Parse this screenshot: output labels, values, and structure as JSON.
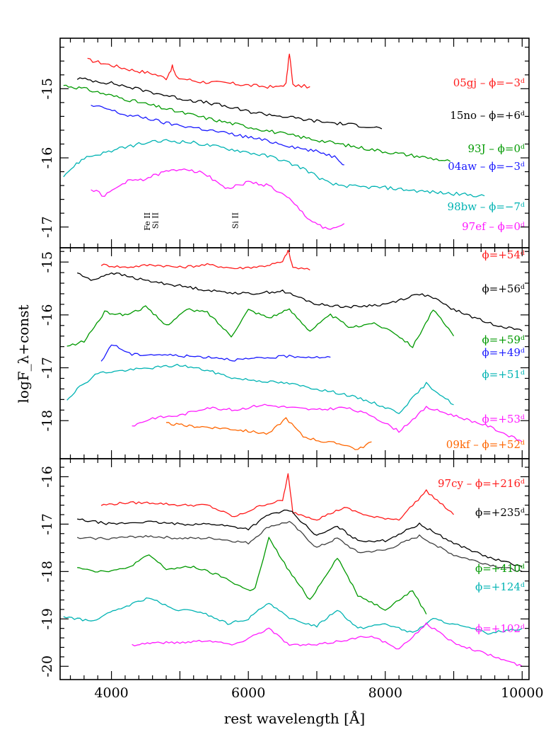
{
  "chart_data": {
    "type": "line",
    "xlabel": "rest wavelength [Å]",
    "ylabel": "logF_λ+const",
    "xlim": [
      3250,
      10100
    ],
    "x_ticks": [
      4000,
      6000,
      8000,
      10000
    ],
    "panels": [
      {
        "id": "top",
        "ylim": [
          -17.3,
          -14.27
        ],
        "y_ticks": [
          "-15",
          "-16",
          "-17"
        ],
        "y_tick_values": [
          -15,
          -16,
          -17
        ],
        "annotations": [
          {
            "text": "Fe II",
            "x": 4560
          },
          {
            "text": "Si II",
            "x": 4680
          },
          {
            "text": "Si II",
            "x": 5850
          }
        ],
        "series": [
          {
            "name": "05gj",
            "phase": "ϕ=−3ᵈ",
            "color": "#ff1a1a",
            "x": [
              3650,
              4000,
              4300,
              4600,
              4800,
              4890,
              4950,
              5300,
              5700,
              6000,
              6400,
              6550,
              6600,
              6650,
              6900
            ],
            "y": [
              -14.58,
              -14.66,
              -14.73,
              -14.78,
              -14.85,
              -14.68,
              -14.84,
              -14.9,
              -14.92,
              -14.95,
              -14.98,
              -14.93,
              -14.48,
              -14.95,
              -14.97
            ]
          },
          {
            "name": "15no",
            "phase": "ϕ=+6ᵈ",
            "color": "#000000",
            "x": [
              3500,
              4000,
              4500,
              5000,
              5500,
              6000,
              6500,
              7000,
              7300,
              7500,
              7800,
              7950
            ],
            "y": [
              -14.85,
              -14.92,
              -15.03,
              -15.14,
              -15.22,
              -15.33,
              -15.4,
              -15.47,
              -15.5,
              -15.52,
              -15.55,
              -15.58
            ]
          },
          {
            "name": "93J",
            "phase": "ϕ=0ᵈ",
            "color": "#009900",
            "x": [
              3300,
              3600,
              4000,
              4500,
              5000,
              5500,
              6000,
              6500,
              7000,
              7500,
              8000,
              8500,
              8950
            ],
            "y": [
              -14.95,
              -15.0,
              -15.1,
              -15.22,
              -15.34,
              -15.45,
              -15.55,
              -15.65,
              -15.74,
              -15.83,
              -15.91,
              -15.98,
              -16.05
            ]
          },
          {
            "name": "04aw",
            "phase": "ϕ=−3ᵈ",
            "color": "#1a1aff",
            "x": [
              3700,
              3900,
              4200,
              4500,
              4800,
              5200,
              5600,
              6000,
              6400,
              6800,
              7100,
              7300,
              7400
            ],
            "y": [
              -15.25,
              -15.28,
              -15.38,
              -15.42,
              -15.5,
              -15.56,
              -15.63,
              -15.7,
              -15.78,
              -15.87,
              -15.93,
              -16.0,
              -16.1
            ]
          },
          {
            "name": "98bw",
            "phase": "ϕ=−7ᵈ",
            "color": "#00b3b3",
            "x": [
              3300,
              3600,
              4000,
              4400,
              4800,
              5200,
              5600,
              6000,
              6400,
              6800,
              7200,
              7600,
              8000,
              8500,
              9000,
              9450
            ],
            "y": [
              -16.25,
              -16.0,
              -15.9,
              -15.8,
              -15.75,
              -15.78,
              -15.85,
              -15.92,
              -16.0,
              -16.15,
              -16.38,
              -16.42,
              -16.43,
              -16.48,
              -16.52,
              -16.55
            ]
          },
          {
            "name": "97ef",
            "phase": "ϕ=0ᵈ",
            "color": "#ff1aff",
            "x": [
              3700,
              3900,
              4200,
              4500,
              4800,
              5100,
              5400,
              5700,
              6000,
              6300,
              6600,
              6900,
              7200,
              7400
            ],
            "y": [
              -16.45,
              -16.55,
              -16.35,
              -16.3,
              -16.2,
              -16.15,
              -16.25,
              -16.45,
              -16.35,
              -16.4,
              -16.6,
              -16.9,
              -17.05,
              -16.95
            ]
          }
        ]
      },
      {
        "id": "middle",
        "ylim": [
          -18.72,
          -14.73
        ],
        "y_ticks": [
          "-15",
          "-16",
          "-17",
          "-18"
        ],
        "y_tick_values": [
          -15,
          -16,
          -17,
          -18
        ],
        "series": [
          {
            "name": "",
            "phase": "ϕ=+54ᵈ",
            "color": "#ff1a1a",
            "x": [
              3850,
              4200,
              4600,
              5000,
              5400,
              5800,
              6200,
              6500,
              6580,
              6650,
              6900
            ],
            "y": [
              -15.05,
              -15.1,
              -15.05,
              -15.1,
              -15.05,
              -15.12,
              -15.08,
              -15.0,
              -14.78,
              -15.1,
              -15.15
            ]
          },
          {
            "name": "",
            "phase": "ϕ=+56ᵈ",
            "color": "#000000",
            "x": [
              3500,
              3700,
              4000,
              4500,
              5000,
              5500,
              6000,
              6500,
              7000,
              7500,
              8000,
              8500,
              8700,
              9000,
              9500,
              10000
            ],
            "y": [
              -15.2,
              -15.35,
              -15.2,
              -15.35,
              -15.45,
              -15.55,
              -15.6,
              -15.55,
              -15.8,
              -15.85,
              -15.8,
              -15.6,
              -15.68,
              -15.9,
              -16.15,
              -16.3
            ]
          },
          {
            "name": "",
            "phase": "ϕ=+59ᵈ",
            "color": "#009900",
            "x": [
              3350,
              3600,
              3900,
              4200,
              4500,
              4800,
              5100,
              5400,
              5750,
              6000,
              6300,
              6600,
              6900,
              7200,
              7500,
              7800,
              8100,
              8400,
              8700,
              9000
            ],
            "y": [
              -16.6,
              -16.5,
              -15.95,
              -16.0,
              -15.85,
              -16.2,
              -15.9,
              -15.95,
              -16.4,
              -15.9,
              -16.05,
              -15.9,
              -16.3,
              -16.0,
              -16.25,
              -16.15,
              -16.3,
              -16.6,
              -15.9,
              -16.4
            ]
          },
          {
            "name": "",
            "phase": "ϕ=+49ᵈ",
            "color": "#1a1aff",
            "x": [
              3850,
              4000,
              4300,
              4700,
              5100,
              5500,
              5800,
              6200,
              6600,
              7000,
              7200
            ],
            "y": [
              -16.9,
              -16.55,
              -16.75,
              -16.75,
              -16.78,
              -16.8,
              -16.85,
              -16.82,
              -16.78,
              -16.8,
              -16.8
            ]
          },
          {
            "name": "",
            "phase": "ϕ=+51ᵈ",
            "color": "#00b3b3",
            "x": [
              3350,
              3500,
              3800,
              4200,
              4600,
              5000,
              5400,
              5800,
              6200,
              6600,
              7000,
              7400,
              7800,
              8200,
              8600,
              9000
            ],
            "y": [
              -17.6,
              -17.4,
              -17.1,
              -17.05,
              -17.0,
              -16.95,
              -17.05,
              -17.2,
              -17.25,
              -17.3,
              -17.4,
              -17.5,
              -17.65,
              -17.85,
              -17.3,
              -17.7
            ]
          },
          {
            "name": "",
            "phase": "ϕ=+53ᵈ",
            "color": "#ff1aff",
            "x": [
              4300,
              4600,
              5000,
              5400,
              5800,
              6200,
              6600,
              7000,
              7400,
              7800,
              8200,
              8600,
              9000,
              9500,
              10000
            ],
            "y": [
              -18.1,
              -17.95,
              -17.9,
              -17.75,
              -17.8,
              -17.7,
              -17.75,
              -17.8,
              -17.75,
              -17.9,
              -18.2,
              -17.75,
              -17.9,
              -18.1,
              -18.4
            ]
          },
          {
            "name": "09kf",
            "phase": "ϕ=+52ᵈ",
            "color": "#ff6600",
            "x": [
              4800,
              5100,
              5400,
              5700,
              6000,
              6300,
              6550,
              6800,
              7100,
              7400,
              7600,
              7800
            ],
            "y": [
              -18.05,
              -18.1,
              -18.12,
              -18.15,
              -18.2,
              -18.25,
              -17.95,
              -18.3,
              -18.4,
              -18.45,
              -18.55,
              -18.4
            ]
          }
        ]
      },
      {
        "id": "bottom",
        "ylim": [
          -20.28,
          -15.62
        ],
        "y_ticks": [
          "-16",
          "-17",
          "-18",
          "-19",
          "-20"
        ],
        "y_tick_values": [
          -16,
          -17,
          -18,
          -19,
          -20
        ],
        "series": [
          {
            "name": "97cy",
            "phase": "ϕ=+216ᵈ",
            "color": "#ff1a1a",
            "x": [
              3850,
              4200,
              4600,
              5000,
              5400,
              5800,
              6200,
              6500,
              6580,
              6650,
              7000,
              7400,
              7800,
              8200,
              8600,
              8800,
              9000
            ],
            "y": [
              -16.6,
              -16.55,
              -16.55,
              -16.6,
              -16.6,
              -16.85,
              -16.6,
              -16.5,
              -15.95,
              -16.75,
              -16.9,
              -16.65,
              -16.85,
              -16.9,
              -16.3,
              -16.55,
              -16.8
            ]
          },
          {
            "name": "",
            "phase": "ϕ=+235ᵈ",
            "color": "#000000",
            "x": [
              3500,
              4000,
              4500,
              5000,
              5500,
              6000,
              6300,
              6600,
              7000,
              7300,
              7600,
              8000,
              8500,
              9000,
              9500,
              10000
            ],
            "y": [
              -16.9,
              -17.0,
              -16.95,
              -17.0,
              -17.0,
              -17.1,
              -16.8,
              -16.7,
              -17.25,
              -17.05,
              -17.35,
              -17.35,
              -17.0,
              -17.4,
              -17.7,
              -17.9
            ]
          },
          {
            "name": "",
            "phase": "",
            "color": "#404040",
            "x": [
              3500,
              4000,
              4500,
              5000,
              5500,
              6000,
              6300,
              6600,
              7000,
              7300,
              7600,
              8000,
              8500,
              9000,
              9500,
              10000
            ],
            "y": [
              -17.3,
              -17.3,
              -17.25,
              -17.3,
              -17.3,
              -17.4,
              -17.05,
              -16.95,
              -17.5,
              -17.3,
              -17.6,
              -17.55,
              -17.25,
              -17.65,
              -17.85,
              -18.0
            ]
          },
          {
            "name": "",
            "phase": "ϕ=+410ᵈ",
            "color": "#009900",
            "x": [
              3500,
              3800,
              4200,
              4550,
              4800,
              5200,
              5600,
              6000,
              6100,
              6300,
              6600,
              6900,
              7300,
              7600,
              8000,
              8400,
              8600
            ],
            "y": [
              -17.9,
              -18.0,
              -17.95,
              -17.65,
              -17.95,
              -17.9,
              -18.1,
              -18.4,
              -18.35,
              -17.3,
              -18.0,
              -18.6,
              -17.7,
              -18.5,
              -18.8,
              -18.4,
              -18.9
            ]
          },
          {
            "name": "",
            "phase": "ϕ=+124ᵈ",
            "color": "#00b3b3",
            "x": [
              3300,
              3700,
              4100,
              4550,
              4900,
              5300,
              5700,
              6000,
              6300,
              6600,
              7000,
              7300,
              7600,
              8000,
              8400,
              8700,
              9100,
              9500,
              10000
            ],
            "y": [
              -18.95,
              -19.05,
              -18.8,
              -18.55,
              -18.8,
              -18.85,
              -19.1,
              -19.0,
              -18.65,
              -19.0,
              -19.15,
              -18.8,
              -19.2,
              -19.1,
              -19.3,
              -19.0,
              -19.15,
              -19.3,
              -19.2
            ]
          },
          {
            "name": "",
            "phase": "ϕ=+102ᵈ",
            "color": "#ff1aff",
            "x": [
              4300,
              4600,
              5000,
              5400,
              5800,
              6000,
              6300,
              6600,
              7000,
              7400,
              7800,
              8200,
              8600,
              9000,
              9500,
              10000
            ],
            "y": [
              -19.55,
              -19.5,
              -19.5,
              -19.45,
              -19.55,
              -19.4,
              -19.2,
              -19.55,
              -19.55,
              -19.45,
              -19.35,
              -19.65,
              -19.1,
              -19.5,
              -19.75,
              -20.0
            ]
          }
        ]
      }
    ]
  }
}
